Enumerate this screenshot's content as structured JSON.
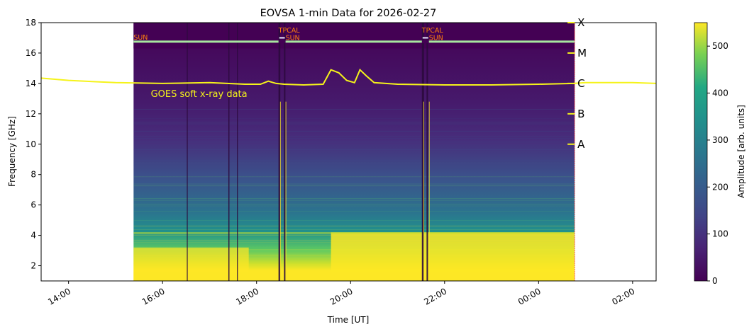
{
  "chart_data": {
    "type": "heatmap",
    "title": "EOVSA 1-min Data for 2026-02-27",
    "xlabel": "Time [UT]",
    "ylabel": "Frequency [GHz]",
    "ylim": [
      1.0,
      18.0
    ],
    "xlim": [
      "13:25",
      "02:30"
    ],
    "x_ticks": [
      "14:00",
      "16:00",
      "18:00",
      "20:00",
      "22:00",
      "00:00",
      "02:00"
    ],
    "y_ticks": [
      2,
      4,
      6,
      8,
      10,
      12,
      14,
      16,
      18
    ],
    "data_span": {
      "start": "15:23",
      "end": "00:46"
    },
    "colorbar": {
      "label": "Amplitude [arb. units]",
      "range": [
        0,
        550
      ],
      "ticks": [
        0,
        100,
        200,
        300,
        400,
        500
      ],
      "colormap": "viridis"
    },
    "scan_labels": [
      {
        "time": "15:23",
        "text": "SUN"
      },
      {
        "time": "18:28",
        "text": "TPCAL"
      },
      {
        "time": "18:37",
        "text": "SUN"
      },
      {
        "time": "21:31",
        "text": "TPCAL"
      },
      {
        "time": "21:40",
        "text": "SUN"
      }
    ],
    "goes_classes": [
      {
        "label": "A",
        "freq": 10
      },
      {
        "label": "B",
        "freq": 12
      },
      {
        "label": "C",
        "freq": 14
      },
      {
        "label": "M",
        "freq": 16
      },
      {
        "label": "X",
        "freq": 18
      }
    ],
    "goes_annotation": "GOES soft x-ray data",
    "goes_curve": {
      "name": "GOES soft x-ray data",
      "times": [
        "13:25",
        "14:00",
        "15:00",
        "16:00",
        "17:00",
        "17:45",
        "18:05",
        "18:15",
        "18:25",
        "18:35",
        "19:00",
        "19:25",
        "19:35",
        "19:45",
        "19:55",
        "20:05",
        "20:12",
        "20:20",
        "20:30",
        "21:00",
        "22:00",
        "23:00",
        "00:00",
        "00:45",
        "01:00",
        "02:00",
        "02:30"
      ],
      "values": [
        14.35,
        14.2,
        14.05,
        14.0,
        14.05,
        13.95,
        13.95,
        14.15,
        14.0,
        13.95,
        13.9,
        13.95,
        14.9,
        14.7,
        14.2,
        14.05,
        14.9,
        14.5,
        14.05,
        13.95,
        13.9,
        13.9,
        13.95,
        14.0,
        14.05,
        14.05,
        14.0
      ]
    },
    "colors": {
      "goes_line": "#f5f31a",
      "sun_line": "#a8e6a0",
      "scan_label": "#ff7f0e",
      "boundary_line": "#ff4040"
    }
  }
}
